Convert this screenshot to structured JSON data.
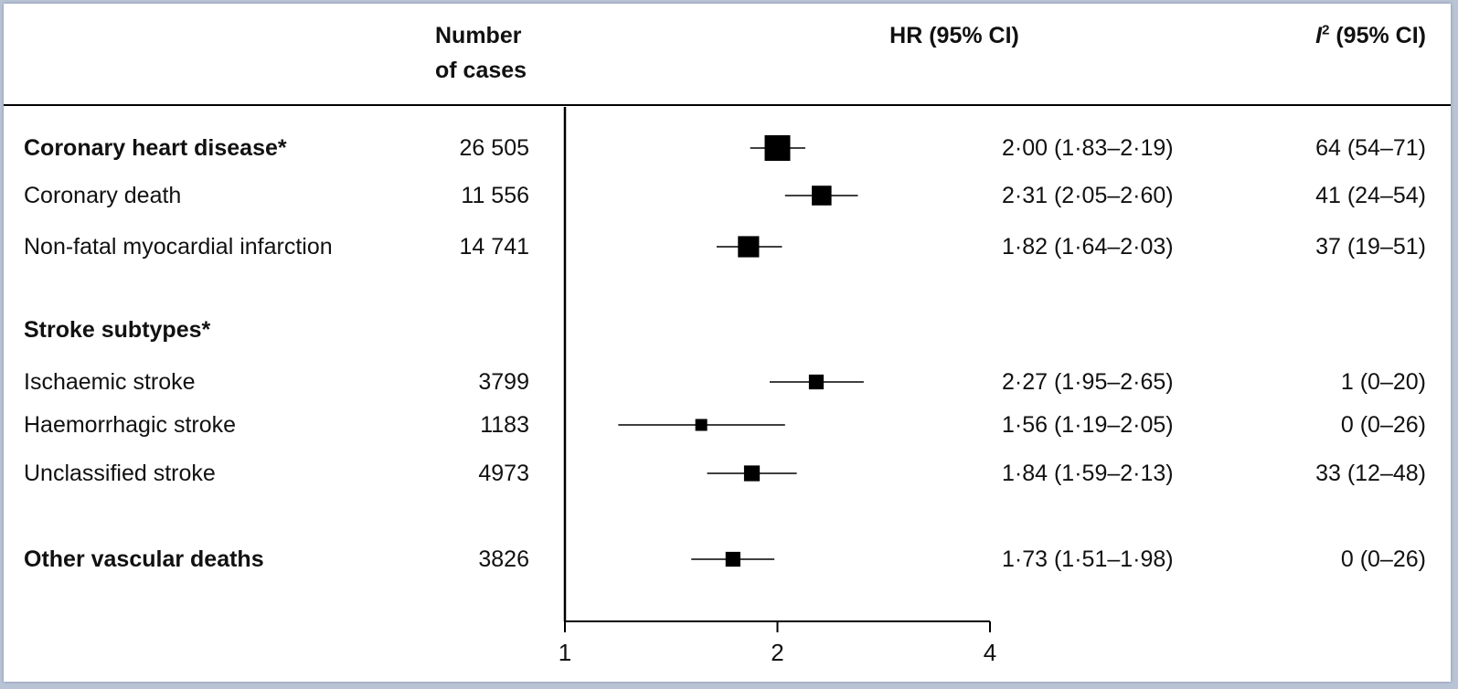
{
  "header": {
    "cases_line1": "Number",
    "cases_line2": "of cases",
    "hr": "HR (95% CI)",
    "i2_letter": "I",
    "i2_sup": "2",
    "i2_rest": " (95% CI)"
  },
  "chart_data": {
    "type": "forest",
    "x_scale": "log",
    "xlim": [
      1,
      4
    ],
    "xticks": [
      1,
      2,
      4
    ],
    "xtick_labels": [
      "1",
      "2",
      "4"
    ],
    "reference_line": 1,
    "rows": [
      {
        "label": "Coronary heart disease*",
        "bold": true,
        "cases": "26 505",
        "hr": 2.0,
        "lo": 1.83,
        "hi": 2.19,
        "hr_text": "2·00 (1·83–2·19)",
        "i2_text": "64 (54–71)",
        "weight": 26505
      },
      {
        "label": "Coronary death",
        "bold": false,
        "cases": "11 556",
        "hr": 2.31,
        "lo": 2.05,
        "hi": 2.6,
        "hr_text": "2·31 (2·05–2·60)",
        "i2_text": "41 (24–54)",
        "weight": 11556
      },
      {
        "label": "Non-fatal myocardial infarction",
        "bold": false,
        "cases": "14 741",
        "hr": 1.82,
        "lo": 1.64,
        "hi": 2.03,
        "hr_text": "1·82 (1·64–2·03)",
        "i2_text": "37 (19–51)",
        "weight": 14741
      },
      {
        "label": "Stroke subtypes*",
        "bold": true,
        "heading": true
      },
      {
        "label": "Ischaemic stroke",
        "bold": false,
        "cases": "3799",
        "hr": 2.27,
        "lo": 1.95,
        "hi": 2.65,
        "hr_text": "2·27 (1·95–2·65)",
        "i2_text": "1 (0–20)",
        "weight": 3799
      },
      {
        "label": "Haemorrhagic stroke",
        "bold": false,
        "cases": "1183",
        "hr": 1.56,
        "lo": 1.19,
        "hi": 2.05,
        "hr_text": "1·56 (1·19–2·05)",
        "i2_text": "0 (0–26)",
        "weight": 1183
      },
      {
        "label": "Unclassified stroke",
        "bold": false,
        "cases": "4973",
        "hr": 1.84,
        "lo": 1.59,
        "hi": 2.13,
        "hr_text": "1·84 (1·59–2·13)",
        "i2_text": "33 (12–48)",
        "weight": 4973
      },
      {
        "label": "Other vascular deaths",
        "bold": true,
        "cases": "3826",
        "hr": 1.73,
        "lo": 1.51,
        "hi": 1.98,
        "hr_text": "1·73 (1·51–1·98)",
        "i2_text": "0 (0–26)",
        "weight": 3826
      }
    ]
  }
}
